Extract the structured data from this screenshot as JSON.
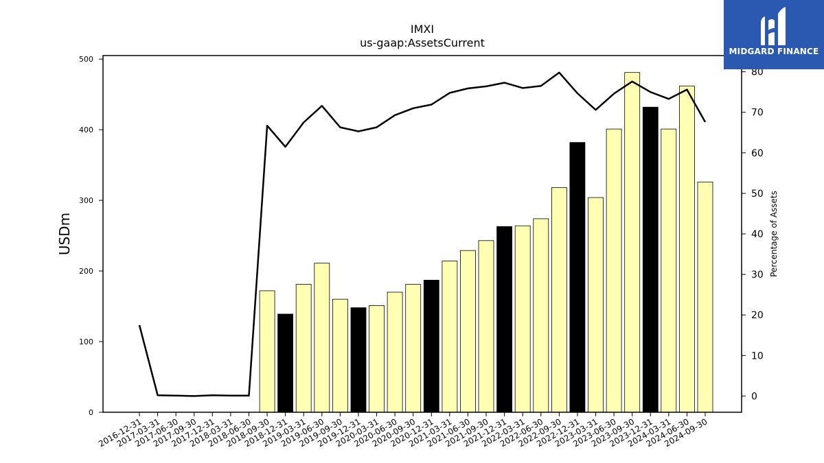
{
  "chart_data": {
    "type": "bar+line",
    "title": "IMXI",
    "subtitle": "us-gaap:AssetsCurrent",
    "ylabel": "USDm",
    "y2label": "Percentage of Assets",
    "ylim": [
      0,
      505
    ],
    "y2lim": [
      -4,
      84
    ],
    "yticks": [
      0,
      100,
      200,
      300,
      400,
      500
    ],
    "y2ticks": [
      0,
      10,
      20,
      30,
      40,
      50,
      60,
      70,
      80
    ],
    "categories": [
      "2016-12-31",
      "2017-03-31",
      "2017-06-30",
      "2017-09-30",
      "2017-12-31",
      "2018-03-31",
      "2018-06-30",
      "2018-09-30",
      "2018-12-31",
      "2019-03-31",
      "2019-06-30",
      "2019-09-30",
      "2019-12-31",
      "2020-03-31",
      "2020-06-30",
      "2020-09-30",
      "2020-12-31",
      "2021-03-31",
      "2021-06-30",
      "2021-09-30",
      "2021-12-31",
      "2022-03-31",
      "2022-06-30",
      "2022-09-30",
      "2022-12-31",
      "2023-03-31",
      "2023-06-30",
      "2023-09-30",
      "2023-12-31",
      "2024-03-31",
      "2024-06-30",
      "2024-09-30"
    ],
    "bars": [
      null,
      null,
      null,
      null,
      null,
      null,
      null,
      172,
      139,
      181,
      211,
      160,
      148,
      151,
      170,
      181,
      187,
      214,
      229,
      243,
      263,
      264,
      274,
      318,
      382,
      304,
      401,
      481,
      432,
      401,
      462,
      326
    ],
    "bar_highlight": [
      false,
      false,
      false,
      false,
      false,
      false,
      false,
      false,
      true,
      false,
      false,
      false,
      true,
      false,
      false,
      false,
      true,
      false,
      false,
      false,
      true,
      false,
      false,
      false,
      true,
      false,
      false,
      false,
      true,
      false,
      false,
      false
    ],
    "line": [
      17.5,
      0.2,
      0.1,
      0.0,
      0.2,
      0.1,
      0.1,
      66.7,
      61.5,
      67.5,
      71.6,
      66.3,
      65.3,
      66.3,
      69.3,
      71.0,
      71.9,
      74.8,
      75.9,
      76.4,
      77.3,
      76.0,
      76.5,
      79.8,
      74.7,
      70.6,
      74.6,
      77.6,
      75.0,
      73.3,
      75.6,
      67.6
    ],
    "colors": {
      "bar": "#ffffb3",
      "bar_highlight": "#000000",
      "bar_edge": "#000000",
      "line": "#000000"
    }
  },
  "logo": {
    "text": "MIDGARD FINANCE"
  }
}
